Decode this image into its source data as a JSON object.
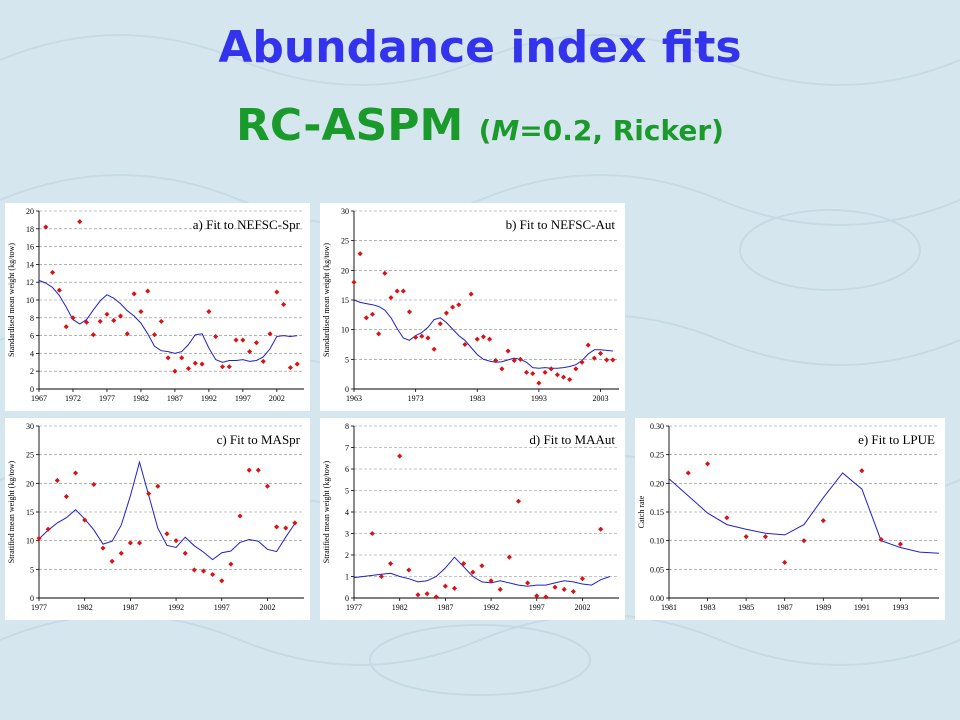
{
  "title": "Abundance index fits",
  "subtitle_main": "RC-ASPM",
  "subtitle_params_prefix": "(",
  "subtitle_params_italic": "M",
  "subtitle_params_rest": "=0.2, Ricker)",
  "colors": {
    "title": "#3333ee",
    "subtitle": "#1a9a2a",
    "fit_line": "#2020cc",
    "observed": "#dd1111",
    "grid": "#888888"
  },
  "chart_data": [
    {
      "id": "a",
      "type": "line",
      "label": "a) Fit to NEFSC-Spr",
      "ylabel": "Standardised mean weight (kg/tow)",
      "xlim": [
        1967,
        2006
      ],
      "ylim": [
        0,
        20
      ],
      "xticks": [
        1967,
        1972,
        1977,
        1982,
        1987,
        1992,
        1997,
        2002
      ],
      "yticks": [
        0,
        2,
        4,
        6,
        8,
        10,
        12,
        14,
        16,
        18,
        20
      ],
      "series": [
        {
          "kind": "fit",
          "x": [
            1967,
            1968,
            1969,
            1970,
            1971,
            1972,
            1973,
            1974,
            1975,
            1976,
            1977,
            1978,
            1979,
            1980,
            1981,
            1982,
            1983,
            1984,
            1985,
            1986,
            1987,
            1988,
            1989,
            1990,
            1991,
            1992,
            1993,
            1994,
            1995,
            1996,
            1997,
            1998,
            1999,
            2000,
            2001,
            2002,
            2003,
            2004,
            2005
          ],
          "y": [
            12.2,
            11.9,
            11.4,
            10.5,
            9.2,
            7.8,
            7.3,
            7.8,
            8.9,
            9.9,
            10.6,
            10.2,
            9.6,
            8.8,
            8.2,
            7.4,
            6.2,
            4.8,
            4.3,
            4.2,
            4.0,
            4.2,
            5.0,
            6.1,
            6.2,
            4.6,
            3.3,
            3.0,
            3.2,
            3.2,
            3.3,
            3.1,
            3.2,
            3.6,
            4.5,
            5.9,
            6.0,
            5.9,
            6.0
          ]
        },
        {
          "kind": "obs",
          "x": [
            1968,
            1969,
            1970,
            1971,
            1972,
            1973,
            1974,
            1975,
            1976,
            1977,
            1978,
            1979,
            1980,
            1981,
            1982,
            1983,
            1984,
            1985,
            1986,
            1987,
            1988,
            1989,
            1990,
            1991,
            1992,
            1993,
            1994,
            1995,
            1996,
            1997,
            1998,
            1999,
            2000,
            2001,
            2002,
            2003,
            2004,
            2005
          ],
          "y": [
            18.2,
            13.1,
            11.1,
            7.0,
            8.0,
            18.8,
            7.5,
            6.1,
            7.6,
            8.4,
            7.7,
            8.2,
            6.2,
            10.7,
            8.7,
            11.0,
            6.1,
            7.6,
            3.5,
            2.0,
            3.5,
            2.3,
            2.9,
            2.8,
            8.7,
            5.9,
            2.5,
            2.5,
            5.5,
            5.5,
            4.2,
            5.2,
            3.1,
            6.2,
            10.9,
            9.5,
            2.4,
            2.8
          ]
        }
      ]
    },
    {
      "id": "b",
      "type": "line",
      "label": "b) Fit to NEFSC-Aut",
      "ylabel": "Standardised mean weight (kg/tow)",
      "xlim": [
        1963,
        2006
      ],
      "ylim": [
        0,
        30
      ],
      "xticks": [
        1963,
        1973,
        1983,
        1993,
        2003
      ],
      "yticks": [
        0,
        5,
        10,
        15,
        20,
        25,
        30
      ],
      "series": [
        {
          "kind": "fit",
          "x": [
            1963,
            1964,
            1965,
            1966,
            1967,
            1968,
            1969,
            1970,
            1971,
            1972,
            1973,
            1974,
            1975,
            1976,
            1977,
            1978,
            1979,
            1980,
            1981,
            1982,
            1983,
            1984,
            1985,
            1986,
            1987,
            1988,
            1989,
            1990,
            1991,
            1992,
            1993,
            1994,
            1995,
            1996,
            1997,
            1998,
            1999,
            2000,
            2001,
            2002,
            2003,
            2004,
            2005
          ],
          "y": [
            15.0,
            14.6,
            14.4,
            14.2,
            13.9,
            13.3,
            12.0,
            10.2,
            8.6,
            8.2,
            9.0,
            9.5,
            10.4,
            11.7,
            12.0,
            11.2,
            10.1,
            9.0,
            8.2,
            7.0,
            5.8,
            5.0,
            4.7,
            4.5,
            4.6,
            4.9,
            5.2,
            5.0,
            4.5,
            3.6,
            3.5,
            3.6,
            3.5,
            3.5,
            3.6,
            3.8,
            4.1,
            4.8,
            5.9,
            6.6,
            6.6,
            6.5,
            6.4
          ]
        },
        {
          "kind": "obs",
          "x": [
            1963,
            1964,
            1965,
            1966,
            1967,
            1968,
            1969,
            1970,
            1971,
            1972,
            1973,
            1974,
            1975,
            1976,
            1977,
            1978,
            1979,
            1980,
            1981,
            1982,
            1983,
            1984,
            1985,
            1986,
            1987,
            1988,
            1989,
            1990,
            1991,
            1992,
            1993,
            1994,
            1995,
            1996,
            1997,
            1998,
            1999,
            2000,
            2001,
            2002,
            2003,
            2004,
            2005
          ],
          "y": [
            18.0,
            22.8,
            12.0,
            12.6,
            9.3,
            19.5,
            15.4,
            16.5,
            16.5,
            13.0,
            8.7,
            8.9,
            8.6,
            6.7,
            11.0,
            12.8,
            13.8,
            14.2,
            7.5,
            16.0,
            8.4,
            8.8,
            8.4,
            4.8,
            3.4,
            6.4,
            4.8,
            5.0,
            2.8,
            2.6,
            1.0,
            2.8,
            3.4,
            2.4,
            2.0,
            1.6,
            3.4,
            4.5,
            7.4,
            5.2,
            6.0,
            4.9,
            4.9
          ]
        }
      ]
    },
    {
      "id": "c",
      "type": "line",
      "label": "c) Fit to MASpr",
      "ylabel": "Stratified mean weight (kg/tow)",
      "xlim": [
        1977,
        2006
      ],
      "ylim": [
        0,
        30
      ],
      "xticks": [
        1977,
        1982,
        1987,
        1992,
        1997,
        2002
      ],
      "yticks": [
        0,
        5,
        10,
        15,
        20,
        25,
        30
      ],
      "series": [
        {
          "kind": "fit",
          "x": [
            1977,
            1978,
            1979,
            1980,
            1981,
            1982,
            1983,
            1984,
            1985,
            1986,
            1987,
            1988,
            1989,
            1990,
            1991,
            1992,
            1993,
            1994,
            1995,
            1996,
            1997,
            1998,
            1999,
            2000,
            2001,
            2002,
            2003,
            2004,
            2005
          ],
          "y": [
            10.3,
            11.8,
            13.1,
            14.0,
            15.4,
            13.8,
            11.9,
            9.4,
            9.9,
            12.7,
            17.8,
            23.7,
            17.9,
            12.2,
            9.2,
            8.8,
            10.6,
            9.1,
            8.0,
            6.7,
            7.9,
            8.2,
            9.7,
            10.2,
            9.9,
            8.5,
            8.1,
            10.6,
            13.0
          ]
        },
        {
          "kind": "obs",
          "x": [
            1977,
            1978,
            1979,
            1980,
            1981,
            1982,
            1983,
            1984,
            1985,
            1986,
            1987,
            1988,
            1989,
            1990,
            1991,
            1992,
            1993,
            1994,
            1995,
            1996,
            1997,
            1998,
            1999,
            2000,
            2001,
            2002,
            2003,
            2004,
            2005
          ],
          "y": [
            10.4,
            12.0,
            20.5,
            17.7,
            21.8,
            13.6,
            19.8,
            8.7,
            6.4,
            7.8,
            9.6,
            9.6,
            18.2,
            19.5,
            11.2,
            10.0,
            7.8,
            4.9,
            4.7,
            4.1,
            3.0,
            5.9,
            14.3,
            22.3,
            22.3,
            19.5,
            12.4,
            12.2,
            13.1
          ]
        }
      ]
    },
    {
      "id": "d",
      "type": "line",
      "label": "d) Fit to MAAut",
      "ylabel": "Stratified mean weight (kg/tow)",
      "xlim": [
        1977,
        2006
      ],
      "ylim": [
        0,
        8
      ],
      "xticks": [
        1977,
        1982,
        1987,
        1992,
        1997,
        2002
      ],
      "yticks": [
        0,
        1,
        2,
        3,
        4,
        5,
        6,
        7,
        8
      ],
      "series": [
        {
          "kind": "fit",
          "x": [
            1977,
            1978,
            1979,
            1980,
            1981,
            1982,
            1983,
            1984,
            1985,
            1986,
            1987,
            1988,
            1989,
            1990,
            1991,
            1992,
            1993,
            1994,
            1995,
            1996,
            1997,
            1998,
            1999,
            2000,
            2001,
            2002,
            2003,
            2004,
            2005
          ],
          "y": [
            0.95,
            1.0,
            1.05,
            1.1,
            1.15,
            1.0,
            0.9,
            0.75,
            0.8,
            1.0,
            1.4,
            1.9,
            1.45,
            1.0,
            0.75,
            0.7,
            0.8,
            0.7,
            0.6,
            0.55,
            0.6,
            0.6,
            0.7,
            0.8,
            0.75,
            0.65,
            0.6,
            0.85,
            1.0
          ]
        },
        {
          "kind": "obs",
          "x": [
            1979,
            1980,
            1981,
            1982,
            1983,
            1984,
            1985,
            1986,
            1987,
            1988,
            1989,
            1990,
            1991,
            1992,
            1993,
            1994,
            1995,
            1996,
            1997,
            1998,
            1999,
            2000,
            2001,
            2002,
            2004
          ],
          "y": [
            3.0,
            1.0,
            1.6,
            6.6,
            1.3,
            0.15,
            0.2,
            0.05,
            0.55,
            0.45,
            1.6,
            1.2,
            1.5,
            0.8,
            0.4,
            1.9,
            4.5,
            0.7,
            0.1,
            0.05,
            0.5,
            0.4,
            0.3,
            0.9,
            3.2
          ]
        }
      ]
    },
    {
      "id": "e",
      "type": "line",
      "label": "e) Fit to LPUE",
      "ylabel": "Catch rate",
      "xlim": [
        1981,
        1995
      ],
      "ylim": [
        0,
        0.3
      ],
      "xticks": [
        1981,
        1983,
        1985,
        1987,
        1989,
        1991,
        1993
      ],
      "ytick_labels": [
        "0.00",
        "0.05",
        "0.10",
        "0.15",
        "0.20",
        "0.25",
        "0.30"
      ],
      "yticks": [
        0,
        0.05,
        0.1,
        0.15,
        0.2,
        0.25,
        0.3
      ],
      "series": [
        {
          "kind": "fit",
          "x": [
            1981,
            1982,
            1983,
            1984,
            1985,
            1986,
            1987,
            1988,
            1989,
            1990,
            1991,
            1992,
            1993,
            1994,
            1995
          ],
          "y": [
            0.208,
            0.178,
            0.148,
            0.128,
            0.12,
            0.113,
            0.11,
            0.128,
            0.175,
            0.218,
            0.19,
            0.1,
            0.088,
            0.08,
            0.078
          ]
        },
        {
          "kind": "obs",
          "x": [
            1982,
            1983,
            1984,
            1985,
            1986,
            1987,
            1988,
            1989,
            1991,
            1992,
            1993
          ],
          "y": [
            0.218,
            0.234,
            0.14,
            0.107,
            0.107,
            0.062,
            0.1,
            0.135,
            0.222,
            0.102,
            0.094
          ]
        }
      ]
    }
  ]
}
